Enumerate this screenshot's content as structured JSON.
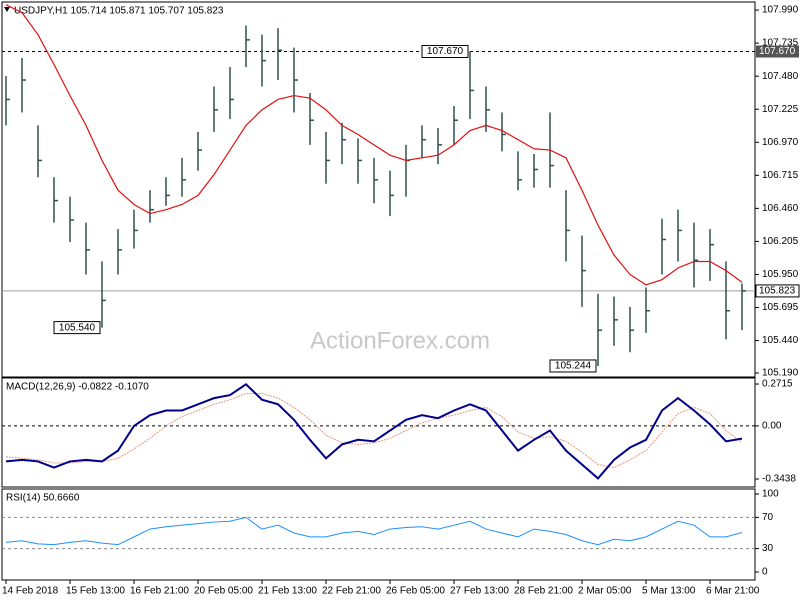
{
  "chart_data": [
    {
      "type": "ohlc",
      "title": "USDJPY,H1  105.714 105.871 105.707 105.823",
      "watermark": "ActionForex.com",
      "categories": [
        "14 Feb 2018",
        null,
        null,
        null,
        "15 Feb 13:00",
        null,
        null,
        null,
        "16 Feb 21:00",
        null,
        null,
        null,
        "20 Feb 05:00",
        null,
        null,
        null,
        "21 Feb 13:00",
        null,
        null,
        null,
        "22 Feb 21:00",
        null,
        null,
        null,
        "26 Feb 05:00",
        null,
        null,
        null,
        "27 Feb 13:00",
        null,
        null,
        null,
        "28 Feb 21:00",
        null,
        null,
        null,
        "2 Mar 05:00",
        null,
        null,
        null,
        "5 Mar 13:00",
        null,
        null,
        null,
        "6 Mar 21:00",
        null,
        null
      ],
      "high": [
        107.48,
        107.62,
        107.1,
        106.7,
        106.55,
        106.35,
        106.05,
        106.3,
        106.45,
        106.6,
        106.7,
        106.85,
        107.05,
        107.4,
        107.55,
        107.87,
        107.8,
        107.85,
        107.7,
        107.35,
        107.05,
        107.12,
        107.0,
        106.85,
        106.75,
        106.95,
        107.1,
        107.08,
        107.25,
        107.67,
        107.4,
        107.2,
        106.9,
        106.88,
        107.2,
        106.6,
        106.25,
        105.8,
        105.78,
        105.7,
        105.85,
        106.38,
        106.45,
        106.35,
        106.3,
        106.05,
        105.88
      ],
      "low": [
        107.1,
        107.2,
        106.7,
        106.35,
        106.2,
        105.95,
        105.54,
        105.95,
        106.15,
        106.35,
        106.48,
        106.55,
        106.75,
        107.05,
        107.15,
        107.55,
        107.4,
        107.45,
        107.2,
        106.95,
        106.65,
        106.8,
        106.65,
        106.5,
        106.4,
        106.55,
        106.85,
        106.8,
        106.95,
        107.15,
        107.05,
        106.9,
        106.6,
        106.62,
        106.62,
        106.05,
        105.7,
        105.244,
        105.4,
        105.35,
        105.5,
        105.95,
        106.05,
        105.85,
        105.9,
        105.45,
        105.52
      ],
      "close": [
        107.3,
        107.45,
        106.83,
        106.52,
        106.37,
        106.14,
        105.75,
        106.14,
        106.29,
        106.45,
        106.56,
        106.68,
        106.91,
        107.22,
        107.3,
        107.76,
        107.6,
        107.68,
        107.45,
        107.14,
        106.83,
        106.99,
        106.83,
        106.68,
        106.56,
        106.83,
        106.99,
        106.95,
        107.14,
        107.37,
        107.22,
        107.03,
        106.68,
        106.76,
        106.79,
        106.29,
        105.98,
        105.52,
        105.6,
        105.52,
        105.67,
        106.22,
        106.29,
        106.06,
        106.18,
        105.67,
        105.823
      ],
      "ma": [
        108.03,
        107.97,
        107.8,
        107.57,
        107.33,
        107.1,
        106.83,
        106.6,
        106.49,
        106.42,
        106.45,
        106.49,
        106.56,
        106.72,
        106.91,
        107.1,
        107.22,
        107.3,
        107.33,
        107.31,
        107.22,
        107.1,
        107.03,
        106.95,
        106.87,
        106.83,
        106.85,
        106.87,
        106.95,
        107.06,
        107.1,
        107.06,
        106.99,
        106.92,
        106.91,
        106.85,
        106.6,
        106.33,
        106.1,
        105.95,
        105.87,
        105.91,
        106.0,
        106.05,
        106.05,
        105.98,
        105.89
      ],
      "bar_color": "#2f4f4f",
      "ma_color": "#e01010",
      "ylim": [
        105.159,
        108.052
      ],
      "yticks": [
        {
          "value": 107.99,
          "label": "107.990"
        },
        {
          "value": 107.735,
          "label": "107.735"
        },
        {
          "value": 107.48,
          "label": "107.480"
        },
        107.225,
        {
          "value": 106.97,
          "label": "106.970"
        },
        106.715,
        {
          "value": 106.46,
          "label": "106.460"
        },
        106.205,
        {
          "value": 105.95,
          "label": "105.950"
        },
        105.695,
        {
          "value": 105.44,
          "label": "105.440"
        },
        {
          "value": 105.19,
          "label": "105.190"
        }
      ],
      "levels": [
        {
          "value": 107.67,
          "label": "107.670"
        }
      ],
      "annotations": [
        {
          "value": 107.67,
          "label": "107.670"
        },
        {
          "value": 105.54,
          "label": "105.540"
        },
        105.244
      ]
    },
    {
      "type": "macd",
      "title": "MACD(12,26,9) -0.0822 -0.1070",
      "macd": [
        -0.23,
        -0.22,
        -0.23,
        -0.27,
        -0.23,
        -0.22,
        -0.23,
        -0.16,
        0.0,
        0.07,
        0.1,
        0.1,
        0.14,
        0.18,
        0.2,
        0.27,
        0.17,
        0.14,
        0.04,
        -0.09,
        -0.21,
        -0.12,
        -0.09,
        -0.1,
        -0.03,
        0.04,
        0.07,
        0.05,
        0.1,
        0.14,
        0.1,
        -0.03,
        -0.16,
        -0.09,
        -0.03,
        -0.16,
        -0.25,
        -0.34,
        -0.22,
        -0.14,
        -0.09,
        0.1,
        0.18,
        0.1,
        0.01,
        -0.1,
        -0.0822
      ],
      "signal": [
        -0.2,
        -0.21,
        -0.22,
        -0.24,
        -0.24,
        -0.23,
        -0.23,
        -0.21,
        -0.15,
        -0.08,
        0.0,
        0.06,
        0.1,
        0.14,
        0.17,
        0.21,
        0.21,
        0.18,
        0.12,
        0.04,
        -0.06,
        -0.11,
        -0.12,
        -0.11,
        -0.08,
        -0.03,
        0.02,
        0.05,
        0.07,
        0.1,
        0.12,
        0.06,
        -0.04,
        -0.08,
        -0.07,
        -0.1,
        -0.17,
        -0.25,
        -0.27,
        -0.22,
        -0.16,
        -0.04,
        0.08,
        0.12,
        0.08,
        -0.03,
        -0.107
      ],
      "macd_color": "#00008b",
      "signal_color": "#e9967a",
      "ylim": [
        -0.3957,
        0.3105
      ],
      "yticks": [
        0.2715,
        {
          "value": 0,
          "label": "0.00"
        },
        -0.3438
      ]
    },
    {
      "type": "rsi",
      "title": "RSI(14) 50.6660",
      "values": [
        38,
        40,
        36,
        35,
        38,
        40,
        37,
        35,
        45,
        55,
        58,
        60,
        62,
        64,
        65,
        70,
        55,
        60,
        50,
        45,
        45,
        50,
        52,
        48,
        55,
        57,
        58,
        55,
        60,
        65,
        55,
        50,
        45,
        55,
        52,
        48,
        40,
        35,
        42,
        40,
        45,
        55,
        65,
        60,
        45,
        45,
        50.666
      ],
      "color": "#1e90ff",
      "ylim": [
        -10.3,
        106.4
      ],
      "yticks": [
        100,
        70,
        30,
        0
      ],
      "levels": [
        70,
        30
      ]
    }
  ]
}
